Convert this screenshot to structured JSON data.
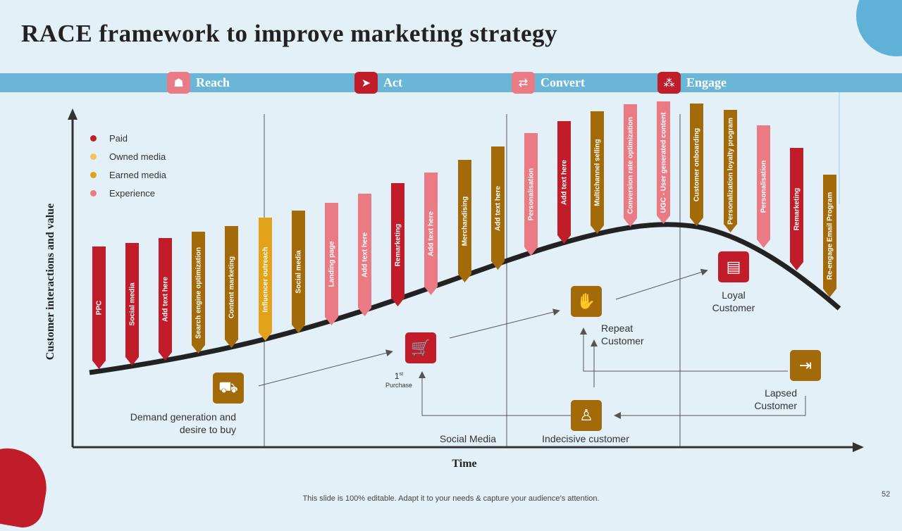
{
  "title": "RACE framework to improve marketing strategy",
  "colors": {
    "paid": "#c01c2a",
    "owned": "#f3c35e",
    "earned": "#e2a21a",
    "experience": "#ea7b85",
    "brown": "#a36a0a",
    "band": "#6ab6d9",
    "background": "#e3f0f8"
  },
  "phases": [
    {
      "label": "Reach",
      "icon": "team-icon",
      "glyph": "☗",
      "color": "#ea7b85"
    },
    {
      "label": "Act",
      "icon": "runner-icon",
      "glyph": "➤",
      "color": "#c01c2a"
    },
    {
      "label": "Convert",
      "icon": "exchange-icon",
      "glyph": "⇄",
      "color": "#ea7b85"
    },
    {
      "label": "Engage",
      "icon": "network-icon",
      "glyph": "⁂",
      "color": "#c01c2a"
    }
  ],
  "legend": [
    {
      "label": "Paid",
      "color": "#c01c2a"
    },
    {
      "label": "Owned media",
      "color": "#f3c35e"
    },
    {
      "label": "Earned media",
      "color": "#e2a21a"
    },
    {
      "label": "Experience",
      "color": "#ea7b85"
    }
  ],
  "flags": [
    {
      "text": "PPC",
      "color": "#c01c2a"
    },
    {
      "text": "Social media",
      "color": "#c01c2a"
    },
    {
      "text": "Add text here",
      "color": "#c01c2a"
    },
    {
      "text": "Search engine optimization",
      "color": "#a36a0a"
    },
    {
      "text": "Content marketing",
      "color": "#a36a0a"
    },
    {
      "text": "Influencer outreach",
      "color": "#e2a21a"
    },
    {
      "text": "Social media",
      "color": "#a36a0a"
    },
    {
      "text": "Landing page",
      "color": "#ea7b85"
    },
    {
      "text": "Add text here",
      "color": "#ea7b85"
    },
    {
      "text": "Remarketing",
      "color": "#c01c2a"
    },
    {
      "text": "Add text here",
      "color": "#ea7b85"
    },
    {
      "text": "Merchandising",
      "color": "#a36a0a"
    },
    {
      "text": "Add text here",
      "color": "#a36a0a"
    },
    {
      "text": "Personalisation",
      "color": "#ea7b85"
    },
    {
      "text": "Add text here",
      "color": "#c01c2a"
    },
    {
      "text": "Multichannel selling",
      "color": "#a36a0a"
    },
    {
      "text": "Conversion rate optimization",
      "color": "#ea7b85"
    },
    {
      "text": "UGC - User generated content",
      "color": "#ea7b85"
    },
    {
      "text": "Customer onboarding",
      "color": "#a36a0a"
    },
    {
      "text": "Personalization loyalty program",
      "color": "#a36a0a"
    },
    {
      "text": "Personalisation",
      "color": "#ea7b85"
    },
    {
      "text": "Remarketing",
      "color": "#c01c2a"
    },
    {
      "text": "Re-engage Email Program",
      "color": "#a36a0a"
    }
  ],
  "nodes": {
    "demand": {
      "label_line1": "Demand generation and",
      "label_line2": "desire to buy",
      "icon": "shopping-cart-person-icon",
      "glyph": "⛟",
      "color": "#a36a0a"
    },
    "purchase": {
      "label_main": "1",
      "label_sup": "st",
      "label_sub": "Purchase",
      "icon": "shopping-trolley-icon",
      "glyph": "🛒",
      "color": "#c01c2a"
    },
    "repeat": {
      "label_line1": "Repeat",
      "label_line2": "Customer",
      "icon": "hand-offer-icon",
      "glyph": "✋",
      "color": "#a36a0a"
    },
    "loyal": {
      "label_line1": "Loyal",
      "label_line2": "Customer",
      "icon": "id-card-icon",
      "glyph": "▤",
      "color": "#c01c2a"
    },
    "lapsed": {
      "label_line1": "Lapsed",
      "label_line2": "Customer",
      "icon": "person-exit-icon",
      "glyph": "⇥",
      "color": "#a36a0a"
    },
    "indecisive": {
      "label": "Indecisive customer",
      "icon": "person-icon",
      "glyph": "♙",
      "color": "#a36a0a"
    }
  },
  "social_media_label": "Social Media",
  "axis": {
    "y_label": "Customer interactions and value",
    "x_label": "Time"
  },
  "footer": "This slide is 100% editable. Adapt it to your needs & capture your audience’s attention.",
  "page_number": "52"
}
